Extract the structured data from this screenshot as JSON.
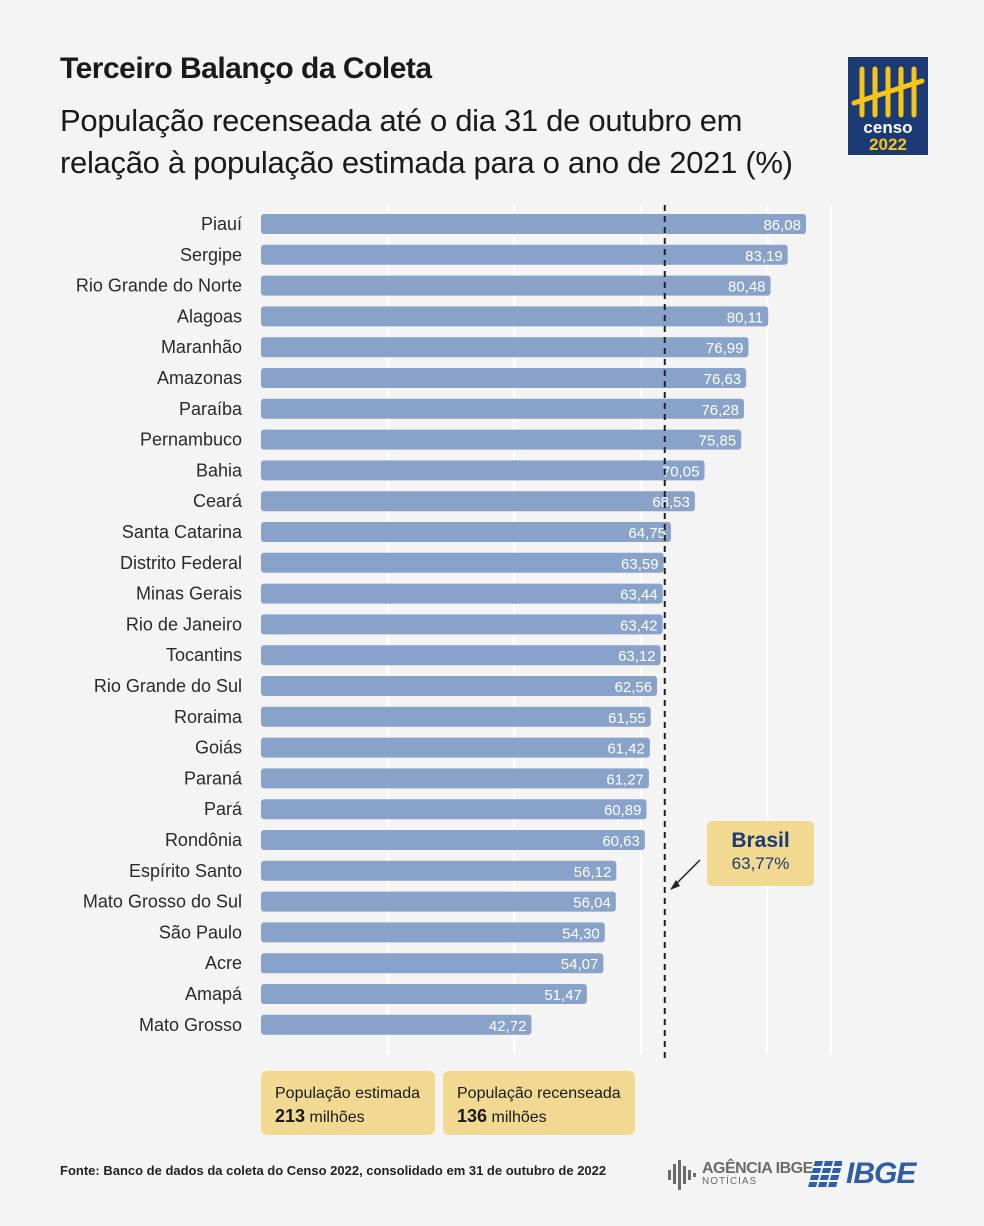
{
  "header": {
    "title": "Terceiro Balanço da Coleta",
    "subtitle": "População recenseada até o dia 31 de outubro em relação à população estimada para o ano de 2021 (%)",
    "logo_text_1": "censo",
    "logo_text_2": "2022"
  },
  "colors": {
    "bar": "#88a2ca",
    "accent_box": "#f1d991",
    "navy": "#1c3a73",
    "ibge_blue": "#2d5ea6"
  },
  "chart_data": {
    "type": "bar",
    "orientation": "horizontal",
    "title": "População recenseada até o dia 31 de outubro em relação à população estimada para o ano de 2021 (%)",
    "categories": [
      "Piauí",
      "Sergipe",
      "Rio Grande do Norte",
      "Alagoas",
      "Maranhão",
      "Amazonas",
      "Paraíba",
      "Pernambuco",
      "Bahia",
      "Ceará",
      "Santa Catarina",
      "Distrito Federal",
      "Minas Gerais",
      "Rio de Janeiro",
      "Tocantins",
      "Rio Grande do Sul",
      "Roraima",
      "Goiás",
      "Paraná",
      "Pará",
      "Rondônia",
      "Espírito Santo",
      "Mato Grosso do Sul",
      "São Paulo",
      "Acre",
      "Amapá",
      "Mato Grosso"
    ],
    "values": [
      86.08,
      83.19,
      80.48,
      80.11,
      76.99,
      76.63,
      76.28,
      75.85,
      70.05,
      68.53,
      64.75,
      63.59,
      63.44,
      63.42,
      63.12,
      62.56,
      61.55,
      61.42,
      61.27,
      60.89,
      60.63,
      56.12,
      56.04,
      54.3,
      54.07,
      51.47,
      42.72
    ],
    "value_labels": [
      "86,08",
      "83,19",
      "80,48",
      "80,11",
      "76,99",
      "76,63",
      "76,28",
      "75,85",
      "70,05",
      "68,53",
      "64,75",
      "63,59",
      "63,44",
      "63,42",
      "63,12",
      "62,56",
      "61,55",
      "61,42",
      "61,27",
      "60,89",
      "60,63",
      "56,12",
      "56,04",
      "54,30",
      "54,07",
      "51,47",
      "42,72"
    ],
    "xlim": [
      0,
      90
    ],
    "grid": true,
    "reference_line": {
      "name": "Brasil",
      "value": 63.77,
      "label": "63,77%"
    }
  },
  "legend": {
    "estimada_label": "População estimada",
    "estimada_value": "213",
    "estimada_unit": "milhões",
    "recenseada_label": "População recenseada",
    "recenseada_value": "136",
    "recenseada_unit": "milhões"
  },
  "footer": {
    "source": "Fonte: Banco de dados da coleta do Censo 2022, consolidado em 31 de outubro de 2022",
    "agencia_main": "AGÊNCIA IBGE",
    "agencia_sub": "NOTÍCIAS",
    "ibge": "IBGE"
  }
}
